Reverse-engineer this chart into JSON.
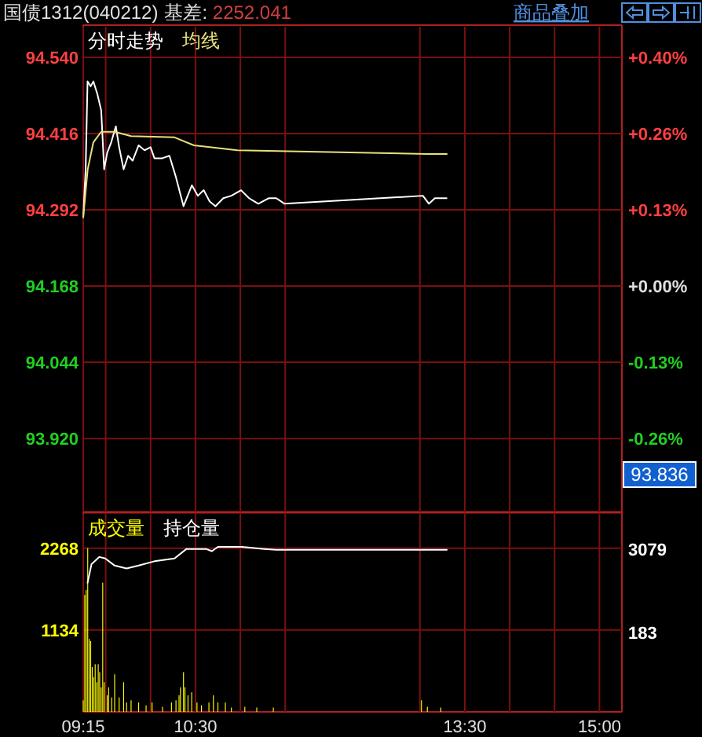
{
  "chart_data": [
    {
      "type": "line",
      "title": "国债1312(040212)",
      "subtitle": "基差: 2252.041",
      "annotations": [
        "商品叠加",
        "93.836"
      ],
      "xlim": [
        9.25,
        15.25
      ],
      "xticks": [
        {
          "value": 9.25,
          "label": null
        },
        {
          "value": 9.5,
          "label": null
        },
        {
          "value": 10,
          "label": null
        },
        {
          "value": 10.5,
          "label": null
        },
        {
          "value": 11,
          "label": null
        },
        {
          "value": 11.5,
          "label": null
        },
        {
          "value": 13,
          "label": null
        },
        {
          "value": 13.5,
          "label": null
        },
        {
          "value": 14,
          "label": null
        },
        {
          "value": 14.5,
          "label": null
        },
        {
          "value": 15,
          "label": null
        }
      ],
      "ylim": [
        93.8,
        94.59
      ],
      "yticks": [
        {
          "value": 93.92,
          "label": "93.920"
        },
        94.044,
        94.168,
        94.292,
        94.416,
        {
          "value": 94.54,
          "label": "94.540"
        }
      ],
      "y2lim": [
        -0.391,
        0.448
      ],
      "y2ticks": [
        {
          "value": -0.263,
          "label": "-0.26%"
        },
        {
          "value": -0.132,
          "label": "-0.13%"
        },
        {
          "value": 0,
          "label": "+0.00%"
        },
        {
          "value": 0.132,
          "label": "+0.13%"
        },
        {
          "value": 0.263,
          "label": "+0.26%"
        },
        {
          "value": 0.395,
          "label": "+0.40%"
        }
      ],
      "tick_labels": "y",
      "grid": true,
      "legend": "top left",
      "series": [
        {
          "name": "分时走势",
          "color": "#ffffff",
          "x": [
            9.25,
            9.277,
            9.298,
            9.333,
            9.363,
            9.408,
            9.45,
            9.483,
            9.517,
            9.562,
            9.613,
            9.65,
            9.7,
            9.75,
            9.8,
            9.867,
            9.933,
            10.0,
            10.043,
            10.13,
            10.21,
            10.283,
            10.367,
            10.46,
            10.527,
            10.592,
            10.657,
            10.723,
            10.81,
            10.9,
            11.008,
            11.097,
            11.2,
            11.317,
            11.4,
            11.493,
            13.033,
            13.1,
            13.167,
            13.233,
            13.297
          ],
          "values": [
            94.28,
            94.358,
            94.501,
            94.493,
            94.501,
            94.48,
            94.454,
            94.358,
            94.385,
            94.402,
            94.428,
            94.394,
            94.358,
            94.38,
            94.372,
            94.397,
            94.389,
            94.394,
            94.376,
            94.376,
            94.38,
            94.345,
            94.298,
            94.332,
            94.315,
            94.324,
            94.306,
            94.298,
            94.311,
            94.315,
            94.324,
            94.311,
            94.302,
            94.311,
            94.311,
            94.302,
            94.315,
            94.302,
            94.311,
            94.311,
            94.311
          ]
        },
        {
          "name": "均线",
          "color": "#e8e07a",
          "x": [
            9.25,
            9.3,
            9.363,
            9.45,
            9.6,
            9.783,
            10.267,
            10.483,
            10.967,
            13.083,
            13.3
          ],
          "values": [
            94.28,
            94.358,
            94.402,
            94.419,
            94.419,
            94.412,
            94.41,
            94.397,
            94.389,
            94.383,
            94.383
          ]
        }
      ]
    },
    {
      "type": "bar",
      "xlim": [
        9.25,
        15.25
      ],
      "xticks": [
        {
          "value": 9.25,
          "label": "09:15"
        },
        {
          "value": 9.5,
          "label": null
        },
        {
          "value": 10,
          "label": null
        },
        {
          "value": 10.5,
          "label": "10:30"
        },
        {
          "value": 11,
          "label": null
        },
        {
          "value": 11.5,
          "label": null
        },
        {
          "value": 13,
          "label": null
        },
        {
          "value": 13.5,
          "label": "13:30"
        },
        {
          "value": 14,
          "label": null
        },
        {
          "value": 14.5,
          "label": null
        },
        {
          "value": 15,
          "label": "15:00"
        }
      ],
      "ylim": [
        0,
        2743
      ],
      "yticks": [
        1134,
        2268
      ],
      "y2lim": [
        -2590,
        4300
      ],
      "y2ticks": [
        183,
        3079
      ],
      "grid": true,
      "legend": "top left",
      "series": [
        {
          "name": "成交量",
          "type": "bar",
          "color": "#ffff00",
          "x": [
            9.25,
            9.267,
            9.283,
            9.3,
            9.317,
            9.333,
            9.35,
            9.367,
            9.383,
            9.4,
            9.417,
            9.433,
            9.45,
            9.467,
            9.483,
            9.517,
            9.533,
            9.567,
            9.6,
            9.65,
            9.7,
            9.733,
            9.783,
            9.867,
            9.95,
            10.017,
            10.133,
            10.233,
            10.283,
            10.317,
            10.333,
            10.367,
            10.383,
            10.417,
            10.458,
            10.517,
            10.567,
            10.65,
            10.7,
            10.75,
            10.833,
            10.9,
            11.05,
            11.183,
            11.367,
            13.017,
            13.083,
            13.233
          ],
          "values": [
            160,
            1620,
            1690,
            2268,
            1010,
            980,
            620,
            480,
            660,
            410,
            660,
            550,
            340,
            1790,
            410,
            230,
            340,
            200,
            520,
            200,
            410,
            130,
            160,
            130,
            90,
            130,
            70,
            130,
            160,
            230,
            340,
            550,
            340,
            230,
            270,
            130,
            90,
            130,
            230,
            130,
            130,
            60,
            70,
            60,
            60,
            160,
            70,
            60
          ]
        },
        {
          "name": "持仓量",
          "type": "line",
          "axis": "y2",
          "color": "#ffffff",
          "x": [
            9.298,
            9.342,
            9.43,
            9.495,
            9.6,
            9.733,
            9.867,
            10.043,
            10.267,
            10.4,
            10.617,
            10.683,
            10.75,
            11.017,
            11.267,
            11.4,
            13.117,
            13.3
          ],
          "values": [
            1900,
            2550,
            2800,
            2750,
            2500,
            2400,
            2500,
            2650,
            2750,
            3079,
            3079,
            3000,
            3150,
            3150,
            3079,
            3050,
            3050,
            3050
          ]
        }
      ]
    }
  ]
}
